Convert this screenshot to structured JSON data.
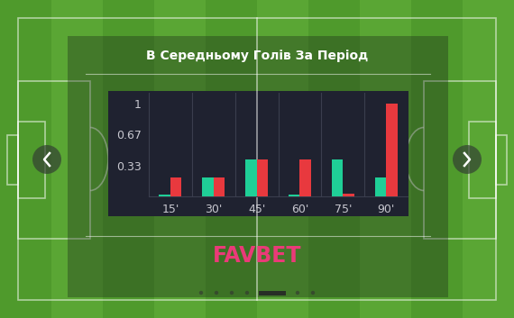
{
  "chart_data": {
    "type": "bar",
    "title": "В Середньому Голів За Період",
    "categories": [
      "15'",
      "30'",
      "45'",
      "60'",
      "75'",
      "90'"
    ],
    "series": [
      {
        "color": "#1fcf97",
        "values": [
          0.02,
          0.2,
          0.4,
          0.02,
          0.4,
          0.2
        ]
      },
      {
        "color": "#e8393e",
        "values": [
          0.2,
          0.2,
          0.4,
          0.4,
          0.03,
          1.0
        ]
      }
    ],
    "ylim": [
      0,
      1.12
    ],
    "yticks": [
      0.33,
      0.67,
      1
    ],
    "brand": "FAVBET"
  }
}
